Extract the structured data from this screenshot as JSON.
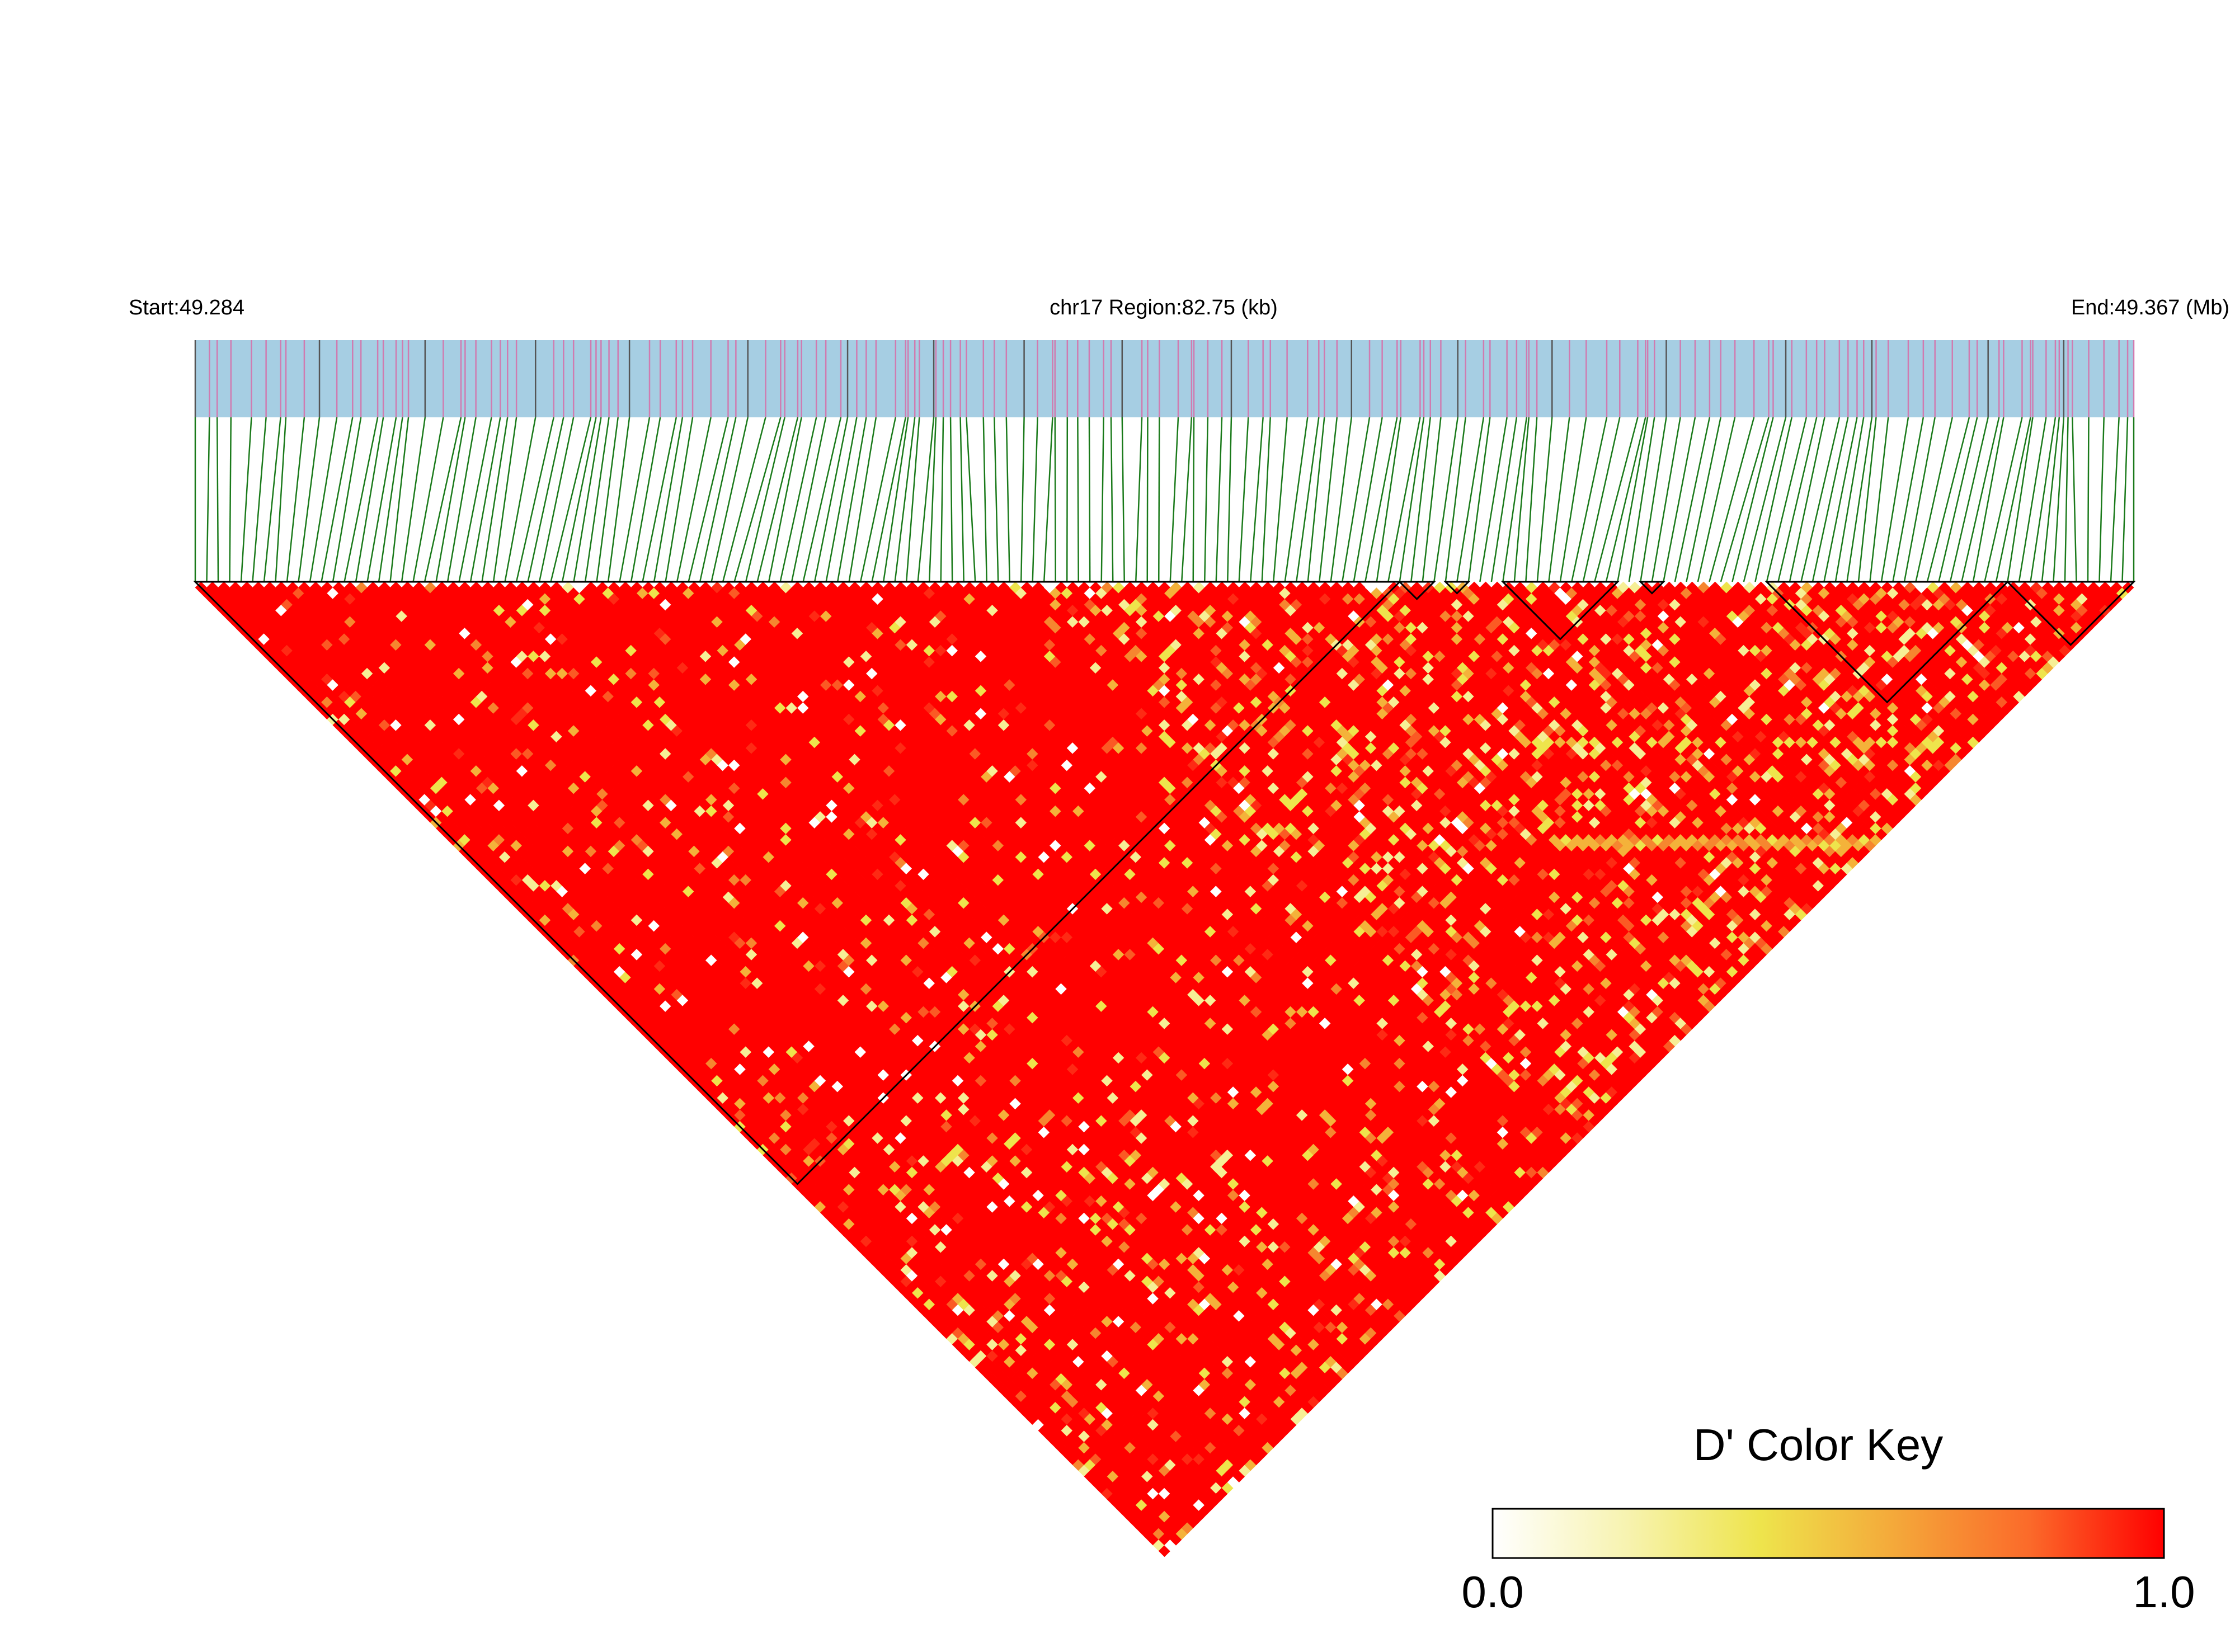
{
  "header": {
    "start_label": "Start:49.284",
    "region_label": "chr17 Region:82.75 (kb)",
    "end_label": "End:49.367 (Mb)"
  },
  "track": {
    "background_color": "#a6cee3",
    "snp_tick_color": "#d07bb0",
    "connector_color": "#1a7a1a"
  },
  "heatmap": {
    "metric": "D'",
    "snp_count": 170,
    "base_color": "#ff0000"
  },
  "legend": {
    "title": "D' Color Key",
    "min_label": "0.0",
    "max_label": "1.0",
    "color_stops": [
      "#ffffff",
      "#f7f3b0",
      "#eee44c",
      "#f4a83a",
      "#fb6a2a",
      "#ff0000"
    ]
  }
}
